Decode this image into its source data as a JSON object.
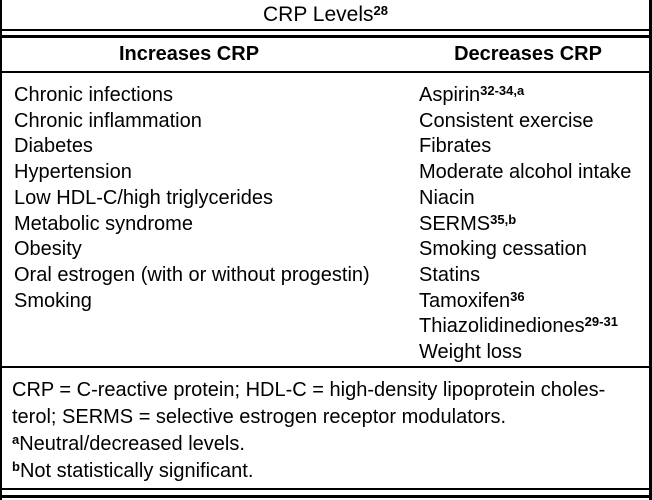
{
  "table": {
    "title": {
      "text": "CRP Levels",
      "sup": "28"
    },
    "columns": [
      {
        "header": "Increases CRP",
        "items": [
          {
            "text": "Chronic infections"
          },
          {
            "text": "Chronic inflammation"
          },
          {
            "text": "Diabetes"
          },
          {
            "text": "Hypertension"
          },
          {
            "text": "Low HDL-C/high triglycerides"
          },
          {
            "text": "Metabolic syndrome"
          },
          {
            "text": "Obesity"
          },
          {
            "text": "Oral estrogen (with or without progestin)"
          },
          {
            "text": "Smoking"
          }
        ]
      },
      {
        "header": "Decreases CRP",
        "items": [
          {
            "text": "Aspirin",
            "sup": "32-34,a"
          },
          {
            "text": "Consistent exercise"
          },
          {
            "text": "Fibrates"
          },
          {
            "text": "Moderate alcohol intake"
          },
          {
            "text": "Niacin"
          },
          {
            "text": "SERMS",
            "sup": "35,b"
          },
          {
            "text": "Smoking cessation"
          },
          {
            "text": "Statins"
          },
          {
            "text": "Tamoxifen",
            "sup": "36"
          },
          {
            "text": "Thiazolidinediones",
            "sup": "29-31"
          },
          {
            "text": "Weight loss"
          }
        ]
      }
    ],
    "footnotes": [
      {
        "text": "CRP = C-reactive protein; HDL-C = high-density lipoprotein choles-"
      },
      {
        "text": "terol; SERMS = selective estrogen receptor modulators."
      },
      {
        "sup": "a",
        "text": "Neutral/decreased levels."
      },
      {
        "sup": "b",
        "text": "Not statistically significant."
      }
    ],
    "colors": {
      "border": "#000000",
      "text": "#000000",
      "background": "#ffffff"
    }
  }
}
